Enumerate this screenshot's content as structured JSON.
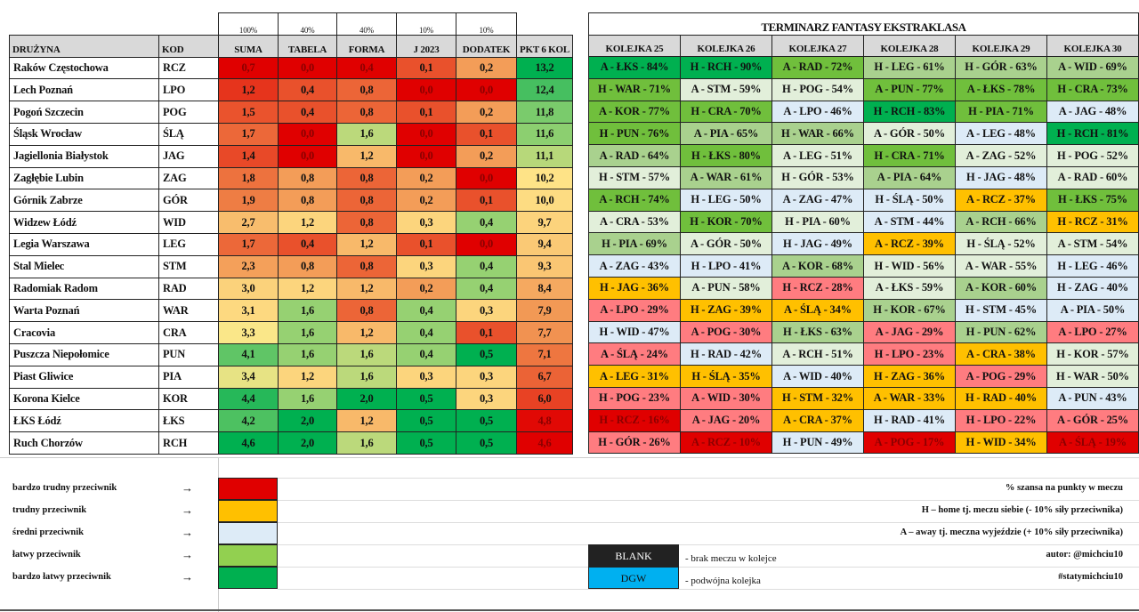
{
  "weights": [
    "100%",
    "40%",
    "40%",
    "10%",
    "10%"
  ],
  "headers": [
    "DRUŻYNA",
    "KOD",
    "SUMA",
    "TABELA",
    "FORMA",
    "J 2023",
    "DODATEK",
    "PKT 6 KOL"
  ],
  "teams": [
    [
      "Raków Częstochowa",
      "RCZ",
      "0,7",
      "0,0",
      "0,4",
      "0,1",
      "0,2",
      "13,2"
    ],
    [
      "Lech Poznań",
      "LPO",
      "1,2",
      "0,4",
      "0,8",
      "0,0",
      "0,0",
      "12,4"
    ],
    [
      "Pogoń Szczecin",
      "POG",
      "1,5",
      "0,4",
      "0,8",
      "0,1",
      "0,2",
      "11,8"
    ],
    [
      "Śląsk Wrocław",
      "ŚLĄ",
      "1,7",
      "0,0",
      "1,6",
      "0,0",
      "0,1",
      "11,6"
    ],
    [
      "Jagiellonia Białystok",
      "JAG",
      "1,4",
      "0,0",
      "1,2",
      "0,0",
      "0,2",
      "11,1"
    ],
    [
      "Zagłębie Lubin",
      "ZAG",
      "1,8",
      "0,8",
      "0,8",
      "0,2",
      "0,0",
      "10,2"
    ],
    [
      "Górnik Zabrze",
      "GÓR",
      "1,9",
      "0,8",
      "0,8",
      "0,2",
      "0,1",
      "10,0"
    ],
    [
      "Widzew Łódź",
      "WID",
      "2,7",
      "1,2",
      "0,8",
      "0,3",
      "0,4",
      "9,7"
    ],
    [
      "Legia Warszawa",
      "LEG",
      "1,7",
      "0,4",
      "1,2",
      "0,1",
      "0,0",
      "9,4"
    ],
    [
      "Stal Mielec",
      "STM",
      "2,3",
      "0,8",
      "0,8",
      "0,3",
      "0,4",
      "9,3"
    ],
    [
      "Radomiak Radom",
      "RAD",
      "3,0",
      "1,2",
      "1,2",
      "0,2",
      "0,4",
      "8,4"
    ],
    [
      "Warta Poznań",
      "WAR",
      "3,1",
      "1,6",
      "0,8",
      "0,4",
      "0,3",
      "7,9"
    ],
    [
      "Cracovia",
      "CRA",
      "3,3",
      "1,6",
      "1,2",
      "0,4",
      "0,1",
      "7,7"
    ],
    [
      "Puszcza Niepołomice",
      "PUN",
      "4,1",
      "1,6",
      "1,6",
      "0,4",
      "0,5",
      "7,1"
    ],
    [
      "Piast Gliwice",
      "PIA",
      "3,4",
      "1,2",
      "1,6",
      "0,3",
      "0,3",
      "6,7"
    ],
    [
      "Korona Kielce",
      "KOR",
      "4,4",
      "1,6",
      "2,0",
      "0,5",
      "0,3",
      "6,0"
    ],
    [
      "ŁKS Łódź",
      "ŁKS",
      "4,2",
      "2,0",
      "1,2",
      "0,5",
      "0,5",
      "4,8"
    ],
    [
      "Ruch Chorzów",
      "RCH",
      "4,6",
      "2,0",
      "1,6",
      "0,5",
      "0,5",
      "4,6"
    ]
  ],
  "fixtures_title": "TERMINARZ FANTASY EKSTRAKLASA",
  "rounds": [
    "KOLEJKA 25",
    "KOLEJKA 26",
    "KOLEJKA 27",
    "KOLEJKA 28",
    "KOLEJKA 29",
    "KOLEJKA 30"
  ],
  "fixtures": [
    [
      [
        "A - ŁKS - 84%",
        "a"
      ],
      [
        "H - RCH - 90%",
        "a"
      ],
      [
        "A - RAD - 72%",
        "b"
      ],
      [
        "H - LEG - 61%",
        "c"
      ],
      [
        "H - GÓR - 63%",
        "c"
      ],
      [
        "A - WID - 69%",
        "c"
      ]
    ],
    [
      [
        "H - WAR - 71%",
        "b"
      ],
      [
        "A - STM - 59%",
        "d"
      ],
      [
        "H - POG - 54%",
        "d"
      ],
      [
        "A - PUN - 77%",
        "b"
      ],
      [
        "A - ŁKS - 78%",
        "b"
      ],
      [
        "H - CRA - 73%",
        "b"
      ]
    ],
    [
      [
        "A - KOR - 77%",
        "b"
      ],
      [
        "H - CRA - 70%",
        "b"
      ],
      [
        "A - LPO - 46%",
        "e"
      ],
      [
        "H - RCH - 83%",
        "a"
      ],
      [
        "H - PIA - 71%",
        "b"
      ],
      [
        "A - JAG - 48%",
        "e"
      ]
    ],
    [
      [
        "H - PUN - 76%",
        "b"
      ],
      [
        "A - PIA - 65%",
        "c"
      ],
      [
        "H - WAR - 66%",
        "c"
      ],
      [
        "A - GÓR - 50%",
        "d"
      ],
      [
        "A - LEG - 48%",
        "e"
      ],
      [
        "H - RCH - 81%",
        "a"
      ]
    ],
    [
      [
        "A - RAD - 64%",
        "c"
      ],
      [
        "H - ŁKS - 80%",
        "b"
      ],
      [
        "A - LEG - 51%",
        "d"
      ],
      [
        "H - CRA - 71%",
        "b"
      ],
      [
        "A - ZAG - 52%",
        "d"
      ],
      [
        "H - POG - 52%",
        "d"
      ]
    ],
    [
      [
        "H - STM - 57%",
        "d"
      ],
      [
        "A - WAR - 61%",
        "c"
      ],
      [
        "H - GÓR - 53%",
        "d"
      ],
      [
        "A - PIA - 64%",
        "c"
      ],
      [
        "H - JAG - 48%",
        "e"
      ],
      [
        "A - RAD - 60%",
        "d"
      ]
    ],
    [
      [
        "A - RCH - 74%",
        "b"
      ],
      [
        "H - LEG - 50%",
        "e"
      ],
      [
        "A - ZAG - 47%",
        "e"
      ],
      [
        "H - ŚLĄ - 50%",
        "e"
      ],
      [
        "A - RCZ - 37%",
        "f"
      ],
      [
        "H - ŁKS - 75%",
        "b"
      ]
    ],
    [
      [
        "A - CRA - 53%",
        "d"
      ],
      [
        "H - KOR - 70%",
        "b"
      ],
      [
        "H - PIA - 60%",
        "d"
      ],
      [
        "A - STM - 44%",
        "e"
      ],
      [
        "A - RCH - 66%",
        "c"
      ],
      [
        "H - RCZ - 31%",
        "f"
      ]
    ],
    [
      [
        "H - PIA - 69%",
        "c"
      ],
      [
        "A - GÓR - 50%",
        "d"
      ],
      [
        "H - JAG - 49%",
        "e"
      ],
      [
        "A - RCZ - 39%",
        "f"
      ],
      [
        "H - ŚLĄ - 52%",
        "d"
      ],
      [
        "A - STM - 54%",
        "d"
      ]
    ],
    [
      [
        "A - ZAG - 43%",
        "e"
      ],
      [
        "H - LPO - 41%",
        "e"
      ],
      [
        "A - KOR - 68%",
        "c"
      ],
      [
        "H - WID - 56%",
        "d"
      ],
      [
        "A - WAR - 55%",
        "d"
      ],
      [
        "H - LEG - 46%",
        "e"
      ]
    ],
    [
      [
        "H - JAG - 36%",
        "f"
      ],
      [
        "A - PUN - 58%",
        "d"
      ],
      [
        "H - RCZ - 28%",
        "g"
      ],
      [
        "A - ŁKS - 59%",
        "d"
      ],
      [
        "A - KOR - 60%",
        "c"
      ],
      [
        "H - ZAG - 40%",
        "e"
      ]
    ],
    [
      [
        "A - LPO - 29%",
        "g"
      ],
      [
        "H - ZAG - 39%",
        "f"
      ],
      [
        "A - ŚLĄ - 34%",
        "f"
      ],
      [
        "H - KOR - 67%",
        "c"
      ],
      [
        "H - STM - 45%",
        "e"
      ],
      [
        "A - PIA - 50%",
        "e"
      ]
    ],
    [
      [
        "H - WID - 47%",
        "e"
      ],
      [
        "A - POG - 30%",
        "g"
      ],
      [
        "H - ŁKS - 63%",
        "c"
      ],
      [
        "A - JAG - 29%",
        "g"
      ],
      [
        "H - PUN - 62%",
        "c"
      ],
      [
        "A - LPO - 27%",
        "g"
      ]
    ],
    [
      [
        "A - ŚLĄ - 24%",
        "g"
      ],
      [
        "H - RAD - 42%",
        "e"
      ],
      [
        "A - RCH - 51%",
        "d"
      ],
      [
        "H - LPO - 23%",
        "g"
      ],
      [
        "A - CRA - 38%",
        "f"
      ],
      [
        "H - KOR - 57%",
        "d"
      ]
    ],
    [
      [
        "A - LEG - 31%",
        "f"
      ],
      [
        "H - ŚLĄ - 35%",
        "f"
      ],
      [
        "A - WID - 40%",
        "e"
      ],
      [
        "H - ZAG - 36%",
        "f"
      ],
      [
        "A - POG - 29%",
        "g"
      ],
      [
        "H - WAR - 50%",
        "d"
      ]
    ],
    [
      [
        "H - POG - 23%",
        "g"
      ],
      [
        "A - WID - 30%",
        "g"
      ],
      [
        "H - STM - 32%",
        "f"
      ],
      [
        "A - WAR - 33%",
        "f"
      ],
      [
        "H - RAD - 40%",
        "f"
      ],
      [
        "A - PUN - 43%",
        "e"
      ]
    ],
    [
      [
        "H - RCZ - 16%",
        "h"
      ],
      [
        "A - JAG - 20%",
        "g"
      ],
      [
        "A - CRA - 37%",
        "f"
      ],
      [
        "H - RAD - 41%",
        "e"
      ],
      [
        "H - LPO - 22%",
        "g"
      ],
      [
        "A - GÓR - 25%",
        "g"
      ]
    ],
    [
      [
        "H - GÓR - 26%",
        "g"
      ],
      [
        "A - RCZ - 10%",
        "h"
      ],
      [
        "H - PUN - 49%",
        "e"
      ],
      [
        "A - POG - 17%",
        "h"
      ],
      [
        "H - WID - 34%",
        "f"
      ],
      [
        "A - ŚLĄ - 19%",
        "h"
      ]
    ]
  ],
  "legend": {
    "items": [
      {
        "label": "bardzo trudny przeciwnik",
        "color": "#e00000"
      },
      {
        "label": "trudny przeciwnik",
        "color": "#ffc000"
      },
      {
        "label": "średni przeciwnik",
        "color": "#ddebf7"
      },
      {
        "label": "łatwy przeciwnik",
        "color": "#92d050"
      },
      {
        "label": "bardzo łatwy przeciwnik",
        "color": "#00b050"
      }
    ],
    "arrow": "→",
    "notes": [
      "% szansa na punkty w meczu",
      "H – home tj. meczu siebie (- 10% siły przeciwnika)",
      "A – away tj. meczna wyjeździe (+ 10% siły przeciwnika)",
      "autor: @michciu10",
      "#statymichciu10"
    ],
    "blank_label": "BLANK",
    "blank_note": "- brak meczu w kolejce",
    "dgw_label": "DGW",
    "dgw_note": "- podwójna kolejka"
  }
}
